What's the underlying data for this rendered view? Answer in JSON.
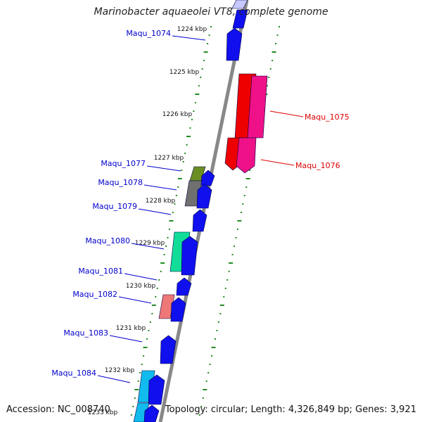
{
  "title": "Marinobacter aquaeolei VT8, complete genome",
  "accession": "Accession: NC_008740",
  "summary": "Topology: circular; Length: 4,326,849 bp; Genes: 3,921",
  "colors": {
    "forward_gene": "#1010ee",
    "backbone": "#888888",
    "tick": "#228b22",
    "label_forward": "#0000cc",
    "label_reverse": "#dd0000"
  },
  "ticks": [
    "1224 kbp",
    "1225 kbp",
    "1226 kbp",
    "1227 kbp",
    "1228 kbp",
    "1229 kbp",
    "1230 kbp",
    "1231 kbp",
    "1232 kbp",
    "1233 kbp"
  ],
  "genes": [
    {
      "name": "Maqu_1074",
      "label_color": "#0000cc",
      "fill": "#1010ee"
    },
    {
      "name": "Maqu_1075",
      "label_color": "#dd0000",
      "fill": "#ee0000"
    },
    {
      "name": "Maqu_1076",
      "label_color": "#dd0000",
      "fill": "#ee1188"
    },
    {
      "name": "Maqu_1077",
      "label_color": "#0000cc",
      "fill": "#6b8e23"
    },
    {
      "name": "Maqu_1078",
      "label_color": "#0000cc",
      "fill": "#707070"
    },
    {
      "name": "Maqu_1079",
      "label_color": "#0000cc",
      "fill": "#1010ee"
    },
    {
      "name": "Maqu_1080",
      "label_color": "#0000cc",
      "fill": "#11dd99"
    },
    {
      "name": "Maqu_1081",
      "label_color": "#0000cc",
      "fill": "#1010ee"
    },
    {
      "name": "Maqu_1082",
      "label_color": "#0000cc",
      "fill": "#ee7777"
    },
    {
      "name": "Maqu_1083",
      "label_color": "#0000cc",
      "fill": "#1010ee"
    },
    {
      "name": "Maqu_1084",
      "label_color": "#0000cc",
      "fill": "#11bbee"
    }
  ]
}
